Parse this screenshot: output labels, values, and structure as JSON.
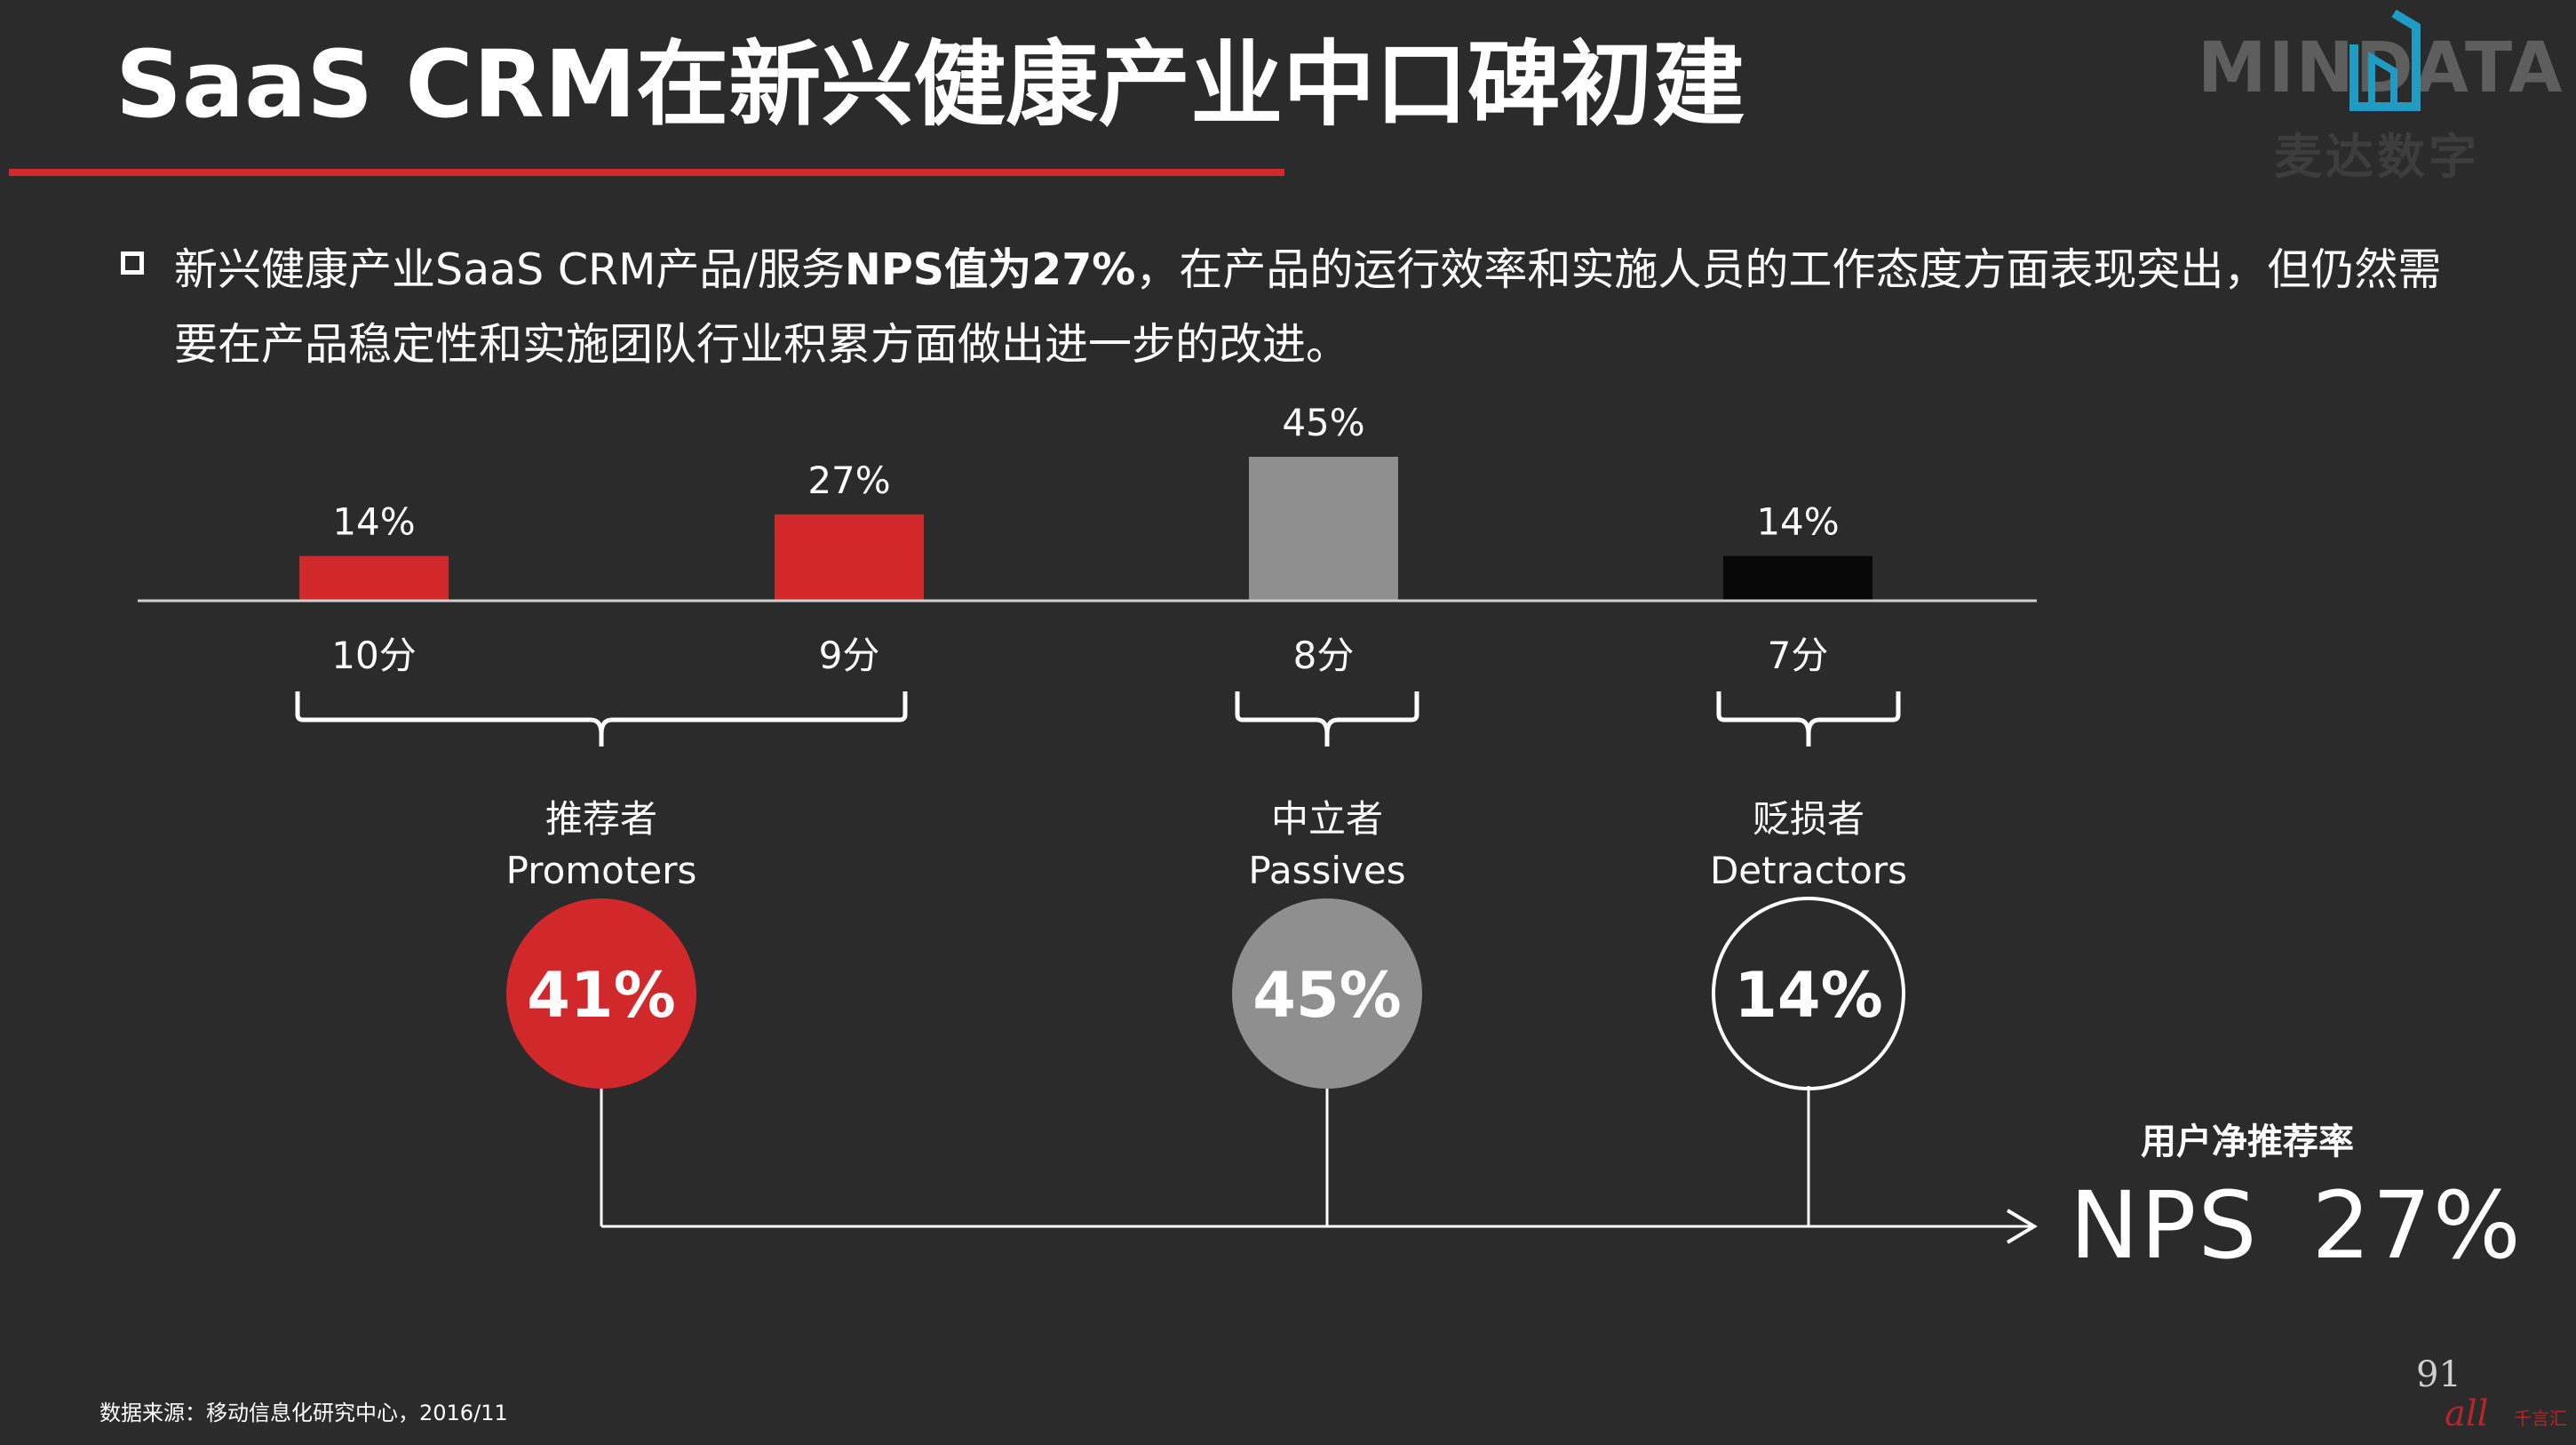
{
  "title": "SaaS CRM在新兴健康产业中口碑初建",
  "logo": {
    "text_en": "MINDATA",
    "text_cn": "麦达数字"
  },
  "summary": {
    "part1": "新兴健康产业SaaS CRM产品/服务",
    "part2_bold": "NPS值为27%",
    "part3": "，在产品的运行效率和实施人员的工作态度方面表现突出，但仍然需要在产品稳定性和实施团队行业积累方面做出进一步的改进。"
  },
  "chart_data": {
    "type": "bar",
    "categories": [
      "10分",
      "9分",
      "8分",
      "7分"
    ],
    "values": [
      14,
      27,
      45,
      14
    ],
    "value_labels": [
      "14%",
      "27%",
      "45%",
      "14%"
    ],
    "bar_colors": [
      "#d0282b",
      "#d0282b",
      "#8f8f8f",
      "#080808"
    ],
    "ylim": [
      0,
      45
    ]
  },
  "groups": [
    {
      "name_cn": "推荐者",
      "name_en": "Promoters",
      "share": "41%",
      "color": "#d0282b",
      "style": "filled"
    },
    {
      "name_cn": "中立者",
      "name_en": "Passives",
      "share": "45%",
      "color": "#8f8f8f",
      "style": "filled"
    },
    {
      "name_cn": "贬损者",
      "name_en": "Detractors",
      "share": "14%",
      "color": "#ffffff",
      "style": "outline"
    }
  ],
  "nps": {
    "label": "用户净推荐率",
    "name": "NPS",
    "value": "27%"
  },
  "footer": {
    "source": "数据来源：移动信息化研究中心，2016/11",
    "page_number": "91",
    "corner_mark": "all",
    "corner_mark_small": "千言汇"
  }
}
